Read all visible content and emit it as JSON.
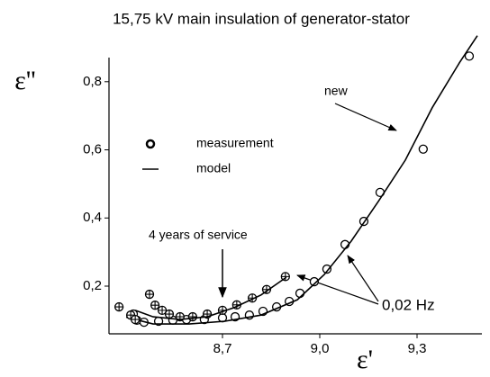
{
  "chart_data": {
    "type": "scatter",
    "title": "15,75 kV main insulation of generator-stator",
    "xlabel": "ε'",
    "ylabel": "ε''",
    "xlim": [
      8.35,
      9.5
    ],
    "ylim": [
      0.06,
      0.95
    ],
    "xticks": [
      {
        "value": 8.7,
        "label": "8,7"
      },
      {
        "value": 9.0,
        "label": "9,0"
      },
      {
        "value": 9.3,
        "label": "9,3"
      }
    ],
    "yticks": [
      {
        "value": 0.2,
        "label": "0,2"
      },
      {
        "value": 0.4,
        "label": "0,4"
      },
      {
        "value": 0.6,
        "label": "0,6"
      },
      {
        "value": 0.8,
        "label": "0,8"
      }
    ],
    "series": [
      {
        "name": "measurement",
        "marker": "circle",
        "color": "#000000",
        "x": [
          8.425,
          8.436,
          8.458,
          8.503,
          8.547,
          8.589,
          8.644,
          8.7,
          8.739,
          8.783,
          8.825,
          8.867,
          8.906,
          8.939,
          8.983,
          9.022,
          9.078,
          9.136,
          9.186,
          9.319,
          9.461
        ],
        "values": [
          0.118,
          0.1,
          0.094,
          0.097,
          0.1,
          0.102,
          0.102,
          0.107,
          0.11,
          0.115,
          0.126,
          0.139,
          0.155,
          0.179,
          0.213,
          0.25,
          0.322,
          0.39,
          0.475,
          0.602,
          0.875
        ]
      },
      {
        "name": "model",
        "marker": "line",
        "color": "#000000",
        "x": [
          8.403,
          8.486,
          8.597,
          8.708,
          8.819,
          8.931,
          9.014,
          9.097,
          9.181,
          9.264,
          9.347,
          9.431,
          9.486
        ],
        "values": [
          0.109,
          0.089,
          0.089,
          0.097,
          0.115,
          0.16,
          0.234,
          0.332,
          0.449,
          0.57,
          0.724,
          0.856,
          0.935
        ]
      },
      {
        "marker": "crossed",
        "color": "#000000",
        "x": [
          8.381,
          8.417,
          8.431,
          8.475,
          8.492,
          8.514,
          8.536,
          8.569,
          8.608,
          8.653,
          8.7,
          8.744,
          8.792,
          8.836,
          8.894
        ],
        "values": [
          0.139,
          0.115,
          0.102,
          0.176,
          0.144,
          0.129,
          0.118,
          0.11,
          0.11,
          0.118,
          0.129,
          0.145,
          0.165,
          0.19,
          0.228
        ]
      },
      {
        "marker": "line",
        "color": "#000000",
        "x": [
          8.431,
          8.486,
          8.569,
          8.653,
          8.736,
          8.819,
          8.897
        ],
        "values": [
          0.129,
          0.11,
          0.102,
          0.11,
          0.137,
          0.174,
          0.226
        ]
      }
    ],
    "annotations": [
      "new",
      "4 years of service",
      "0,02 Hz"
    ]
  }
}
